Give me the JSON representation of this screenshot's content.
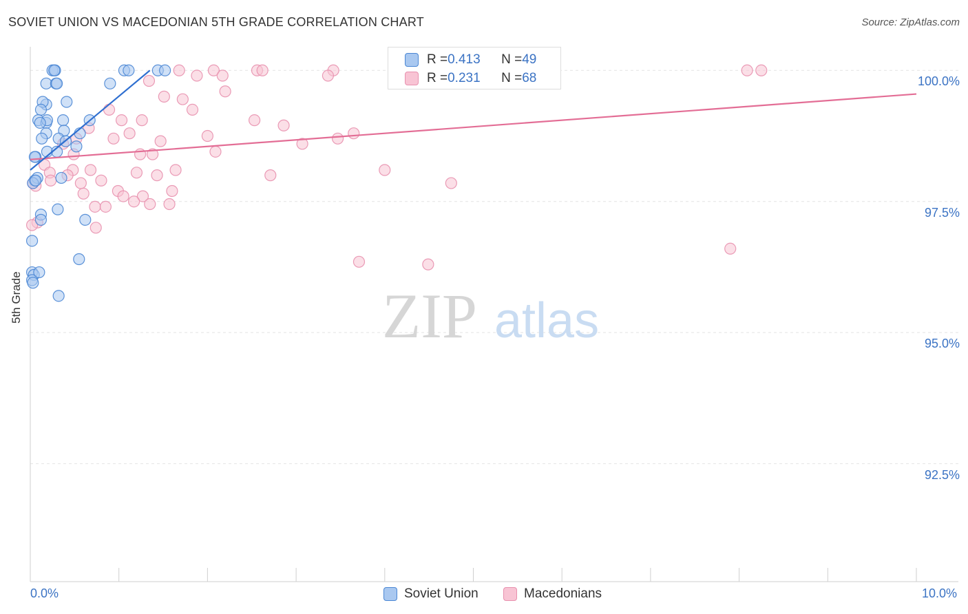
{
  "title": "SOVIET UNION VS MACEDONIAN 5TH GRADE CORRELATION CHART",
  "source": "Source: ZipAtlas.com",
  "watermark": {
    "zip": "ZIP",
    "atlas": "atlas"
  },
  "stats": [
    {
      "r_label": "R = ",
      "r_value": "0.413",
      "n_label": "N = ",
      "n_value": "49"
    },
    {
      "r_label": "R = ",
      "r_value": "0.231",
      "n_label": "N = ",
      "n_value": "68"
    }
  ],
  "colors": {
    "soviet_fill": "#a9c8f0",
    "soviet_stroke": "#4a86d4",
    "soviet_line": "#2f6fd0",
    "maced_fill": "#f8c4d4",
    "maced_stroke": "#e890ae",
    "maced_line": "#e36d95",
    "axis_text": "#3b73c4",
    "grid": "#e4e4e4"
  },
  "chart_data": {
    "type": "scatter",
    "title": "SOVIET UNION VS MACEDONIAN 5TH GRADE CORRELATION CHART",
    "xlabel": "",
    "ylabel": "5th Grade",
    "xlim": [
      0.0,
      10.0
    ],
    "ylim": [
      90.25,
      100.45
    ],
    "x_tick_labels": [
      "0.0%",
      "10.0%"
    ],
    "y_ticks": [
      {
        "value": 100.0,
        "label": "100.0%"
      },
      {
        "value": 97.5,
        "label": "97.5%"
      },
      {
        "value": 95.0,
        "label": "95.0%"
      },
      {
        "value": 92.5,
        "label": "92.5%"
      }
    ],
    "grid": true,
    "legend_position": "bottom",
    "series": [
      {
        "name": "Soviet Union",
        "trend": {
          "x": [
            0.0,
            1.35
          ],
          "y": [
            98.1,
            100.0
          ]
        },
        "points": [
          [
            0.25,
            100.0
          ],
          [
            0.28,
            100.0
          ],
          [
            0.27,
            100.0
          ],
          [
            1.06,
            100.0
          ],
          [
            1.11,
            100.0
          ],
          [
            1.44,
            100.0
          ],
          [
            1.52,
            100.0
          ],
          [
            0.18,
            99.75
          ],
          [
            0.29,
            99.75
          ],
          [
            0.3,
            99.75
          ],
          [
            0.9,
            99.75
          ],
          [
            0.41,
            99.4
          ],
          [
            0.18,
            99.35
          ],
          [
            0.14,
            99.4
          ],
          [
            0.12,
            99.25
          ],
          [
            0.09,
            99.05
          ],
          [
            0.18,
            99.0
          ],
          [
            0.19,
            99.05
          ],
          [
            0.37,
            99.05
          ],
          [
            0.67,
            99.05
          ],
          [
            0.11,
            99.0
          ],
          [
            0.18,
            98.8
          ],
          [
            0.38,
            98.85
          ],
          [
            0.56,
            98.8
          ],
          [
            0.13,
            98.7
          ],
          [
            0.32,
            98.7
          ],
          [
            0.19,
            98.45
          ],
          [
            0.3,
            98.45
          ],
          [
            0.52,
            98.55
          ],
          [
            0.4,
            98.65
          ],
          [
            0.06,
            98.35
          ],
          [
            0.05,
            98.35
          ],
          [
            0.05,
            97.9
          ],
          [
            0.08,
            97.95
          ],
          [
            0.35,
            97.95
          ],
          [
            0.03,
            97.85
          ],
          [
            0.06,
            97.9
          ],
          [
            0.31,
            97.35
          ],
          [
            0.12,
            97.25
          ],
          [
            0.12,
            97.15
          ],
          [
            0.62,
            97.15
          ],
          [
            0.02,
            96.75
          ],
          [
            0.55,
            96.4
          ],
          [
            0.02,
            96.15
          ],
          [
            0.04,
            96.1
          ],
          [
            0.02,
            96.0
          ],
          [
            0.03,
            95.95
          ],
          [
            0.32,
            95.7
          ],
          [
            0.1,
            96.15
          ]
        ]
      },
      {
        "name": "Macedonians",
        "trend": {
          "x": [
            0.0,
            10.0
          ],
          "y": [
            98.3,
            99.55
          ]
        },
        "points": [
          [
            1.68,
            100.0
          ],
          [
            2.07,
            100.0
          ],
          [
            2.56,
            100.0
          ],
          [
            2.62,
            100.0
          ],
          [
            3.42,
            100.0
          ],
          [
            4.15,
            100.0
          ],
          [
            8.09,
            100.0
          ],
          [
            8.25,
            100.0
          ],
          [
            1.88,
            99.9
          ],
          [
            2.17,
            99.9
          ],
          [
            3.36,
            99.9
          ],
          [
            1.34,
            99.8
          ],
          [
            1.51,
            99.5
          ],
          [
            1.72,
            99.45
          ],
          [
            2.2,
            99.6
          ],
          [
            0.89,
            99.25
          ],
          [
            1.83,
            99.25
          ],
          [
            1.03,
            99.05
          ],
          [
            1.26,
            99.05
          ],
          [
            2.53,
            99.05
          ],
          [
            2.86,
            98.95
          ],
          [
            0.66,
            98.9
          ],
          [
            1.12,
            98.8
          ],
          [
            2.0,
            98.75
          ],
          [
            3.47,
            98.7
          ],
          [
            3.65,
            98.8
          ],
          [
            0.94,
            98.7
          ],
          [
            1.47,
            98.65
          ],
          [
            0.52,
            98.7
          ],
          [
            0.37,
            98.6
          ],
          [
            3.07,
            98.6
          ],
          [
            1.24,
            98.4
          ],
          [
            1.38,
            98.4
          ],
          [
            2.09,
            98.45
          ],
          [
            0.49,
            98.4
          ],
          [
            0.16,
            98.2
          ],
          [
            0.22,
            98.05
          ],
          [
            0.48,
            98.1
          ],
          [
            0.68,
            98.1
          ],
          [
            1.2,
            98.05
          ],
          [
            1.64,
            98.1
          ],
          [
            1.43,
            98.0
          ],
          [
            2.71,
            98.0
          ],
          [
            4.0,
            98.1
          ],
          [
            0.23,
            97.9
          ],
          [
            0.42,
            98.0
          ],
          [
            0.57,
            97.85
          ],
          [
            0.8,
            97.9
          ],
          [
            0.06,
            97.8
          ],
          [
            0.03,
            97.85
          ],
          [
            4.75,
            97.85
          ],
          [
            0.6,
            97.65
          ],
          [
            0.99,
            97.7
          ],
          [
            1.05,
            97.6
          ],
          [
            1.27,
            97.6
          ],
          [
            1.6,
            97.7
          ],
          [
            1.17,
            97.5
          ],
          [
            0.73,
            97.4
          ],
          [
            0.85,
            97.4
          ],
          [
            1.35,
            97.45
          ],
          [
            1.57,
            97.45
          ],
          [
            0.74,
            97.0
          ],
          [
            0.08,
            97.1
          ],
          [
            0.02,
            97.05
          ],
          [
            3.71,
            96.35
          ],
          [
            4.49,
            96.3
          ],
          [
            7.9,
            96.6
          ],
          [
            4.15,
            100.0
          ]
        ]
      }
    ]
  },
  "legend": [
    {
      "label": "Soviet Union"
    },
    {
      "label": "Macedonians"
    }
  ]
}
